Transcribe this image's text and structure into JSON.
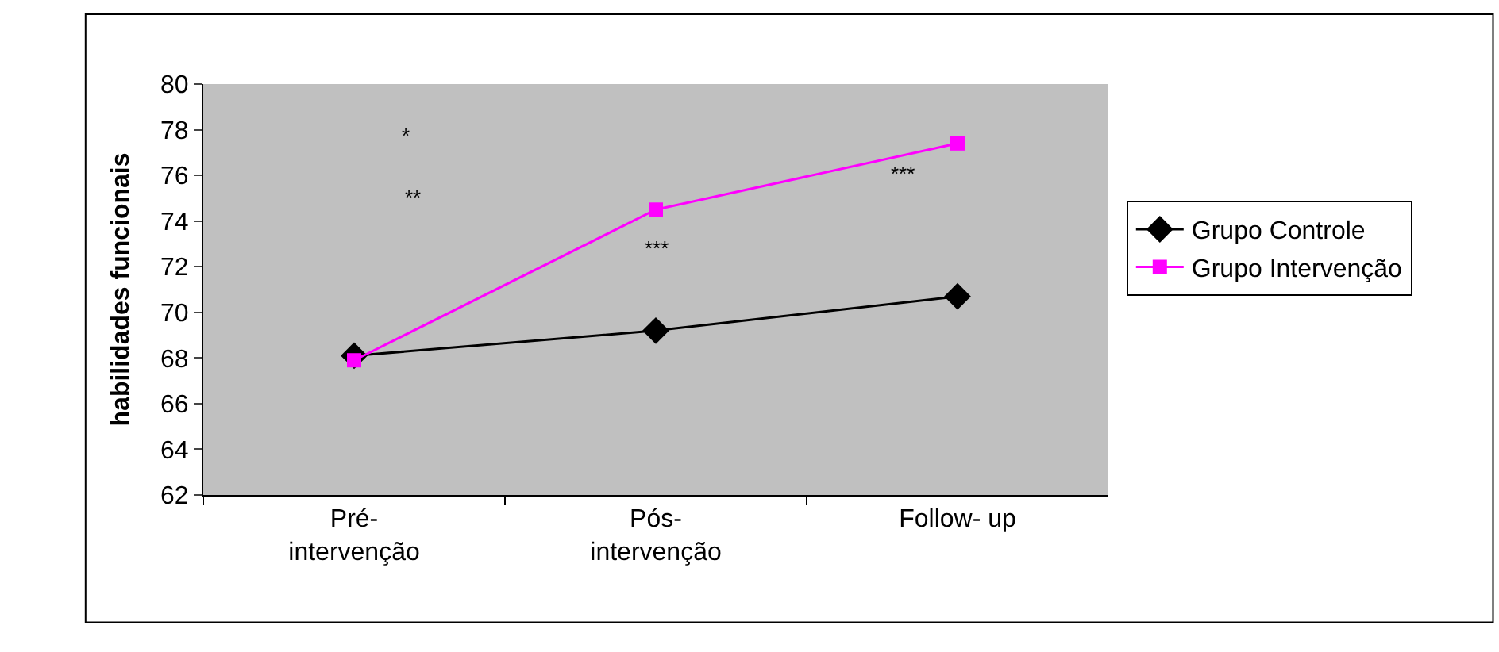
{
  "chart_data": {
    "type": "line",
    "ylabel": "habilidades funcionais",
    "categories": [
      "Pré-\nintervenção",
      "Pós-\nintervenção",
      "Follow- up"
    ],
    "series": [
      {
        "name": "Grupo Controle",
        "color": "#000000",
        "values": [
          68.1,
          69.2,
          70.7
        ],
        "marker": "diamond"
      },
      {
        "name": "Grupo Intervenção",
        "color": "#ff00ff",
        "values": [
          67.9,
          74.5,
          77.4
        ],
        "marker": "square"
      }
    ],
    "ylim": [
      62,
      80
    ],
    "yticks": [
      62,
      64,
      66,
      68,
      70,
      72,
      74,
      76,
      78,
      80
    ],
    "grid": false,
    "legend": "right",
    "annotations": [
      "*",
      "**",
      "***",
      "***"
    ]
  }
}
